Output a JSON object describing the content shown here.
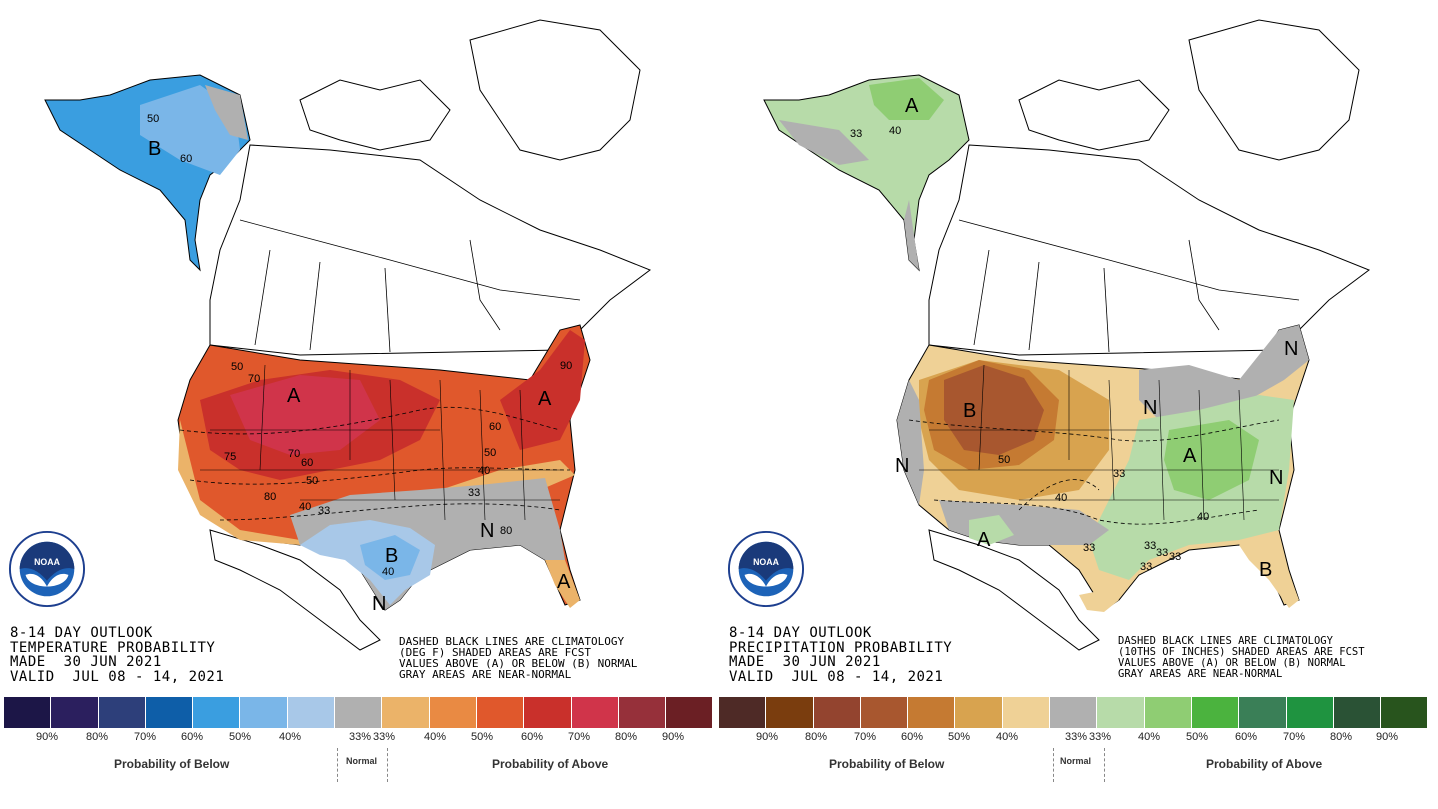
{
  "panels": [
    {
      "id": "temperature",
      "title_lines": [
        "8-14 DAY OUTLOOK",
        "TEMPERATURE PROBABILITY",
        "MADE  30 JUN 2021",
        "VALID  JUL 08 - 14, 2021"
      ],
      "note_lines": [
        "DASHED BLACK LINES ARE CLIMATOLOGY",
        "(DEG F) SHADED AREAS ARE FCST",
        "VALUES ABOVE (A) OR BELOW (B) NORMAL",
        "GRAY AREAS ARE NEAR-NORMAL"
      ],
      "region_labels": [
        "B",
        "A",
        "A",
        "B",
        "N",
        "N",
        "A"
      ],
      "contour_labels": [
        "50",
        "60",
        "50",
        "70",
        "75",
        "70",
        "60",
        "50",
        "80",
        "40",
        "33",
        "80",
        "50",
        "40",
        "33",
        "60",
        "40",
        "90"
      ],
      "legend_colors": [
        "#1c1647",
        "#2b1f5e",
        "#2d3f7a",
        "#0e5ea8",
        "#3a9ee0",
        "#7ab6e8",
        "#a8c8e8",
        "#b0b0b0",
        "#ebb369",
        "#e98a43",
        "#e0582c",
        "#c9302b",
        "#d0344a",
        "#96303a",
        "#6b1f24"
      ],
      "tick_labels": [
        "90%",
        "80%",
        "70%",
        "60%",
        "50%",
        "40%",
        "33%",
        "33%",
        "40%",
        "50%",
        "60%",
        "70%",
        "80%",
        "90%"
      ],
      "caption_below": "Probability of Below",
      "caption_normal": "Normal",
      "caption_above": "Probability of Above"
    },
    {
      "id": "precipitation",
      "title_lines": [
        "8-14 DAY OUTLOOK",
        "PRECIPITATION PROBABILITY",
        "MADE  30 JUN 2021",
        "VALID  JUL 08 - 14, 2021"
      ],
      "note_lines": [
        "DASHED BLACK LINES ARE CLIMATOLOGY",
        "(10THS OF INCHES) SHADED AREAS ARE FCST",
        "VALUES ABOVE (A) OR BELOW (B) NORMAL",
        "GRAY AREAS ARE NEAR-NORMAL"
      ],
      "region_labels": [
        "A",
        "B",
        "N",
        "N",
        "A",
        "A",
        "N",
        "N",
        "B"
      ],
      "contour_labels": [
        "33",
        "40",
        "50",
        "40",
        "33",
        "40",
        "33",
        "33",
        "33",
        "33",
        "33"
      ],
      "legend_colors": [
        "#4e2a26",
        "#7a3d0e",
        "#93442f",
        "#a8572f",
        "#c57a32",
        "#d8a34f",
        "#efd196",
        "#b0b0b0",
        "#b7dba9",
        "#8fcd73",
        "#4bb33e",
        "#3a7f57",
        "#1f9340",
        "#2a5235",
        "#28541d"
      ],
      "tick_labels": [
        "90%",
        "80%",
        "70%",
        "60%",
        "50%",
        "40%",
        "33%",
        "33%",
        "40%",
        "50%",
        "60%",
        "70%",
        "80%",
        "90%"
      ],
      "caption_below": "Probability of Below",
      "caption_normal": "Normal",
      "caption_above": "Probability of Above"
    }
  ],
  "logo_text": "NOAA",
  "logo_ring_text": "NATIONAL OCEANIC AND ATMOSPHERIC ADMINISTRATION · U.S. DEPARTMENT OF COMMERCE"
}
